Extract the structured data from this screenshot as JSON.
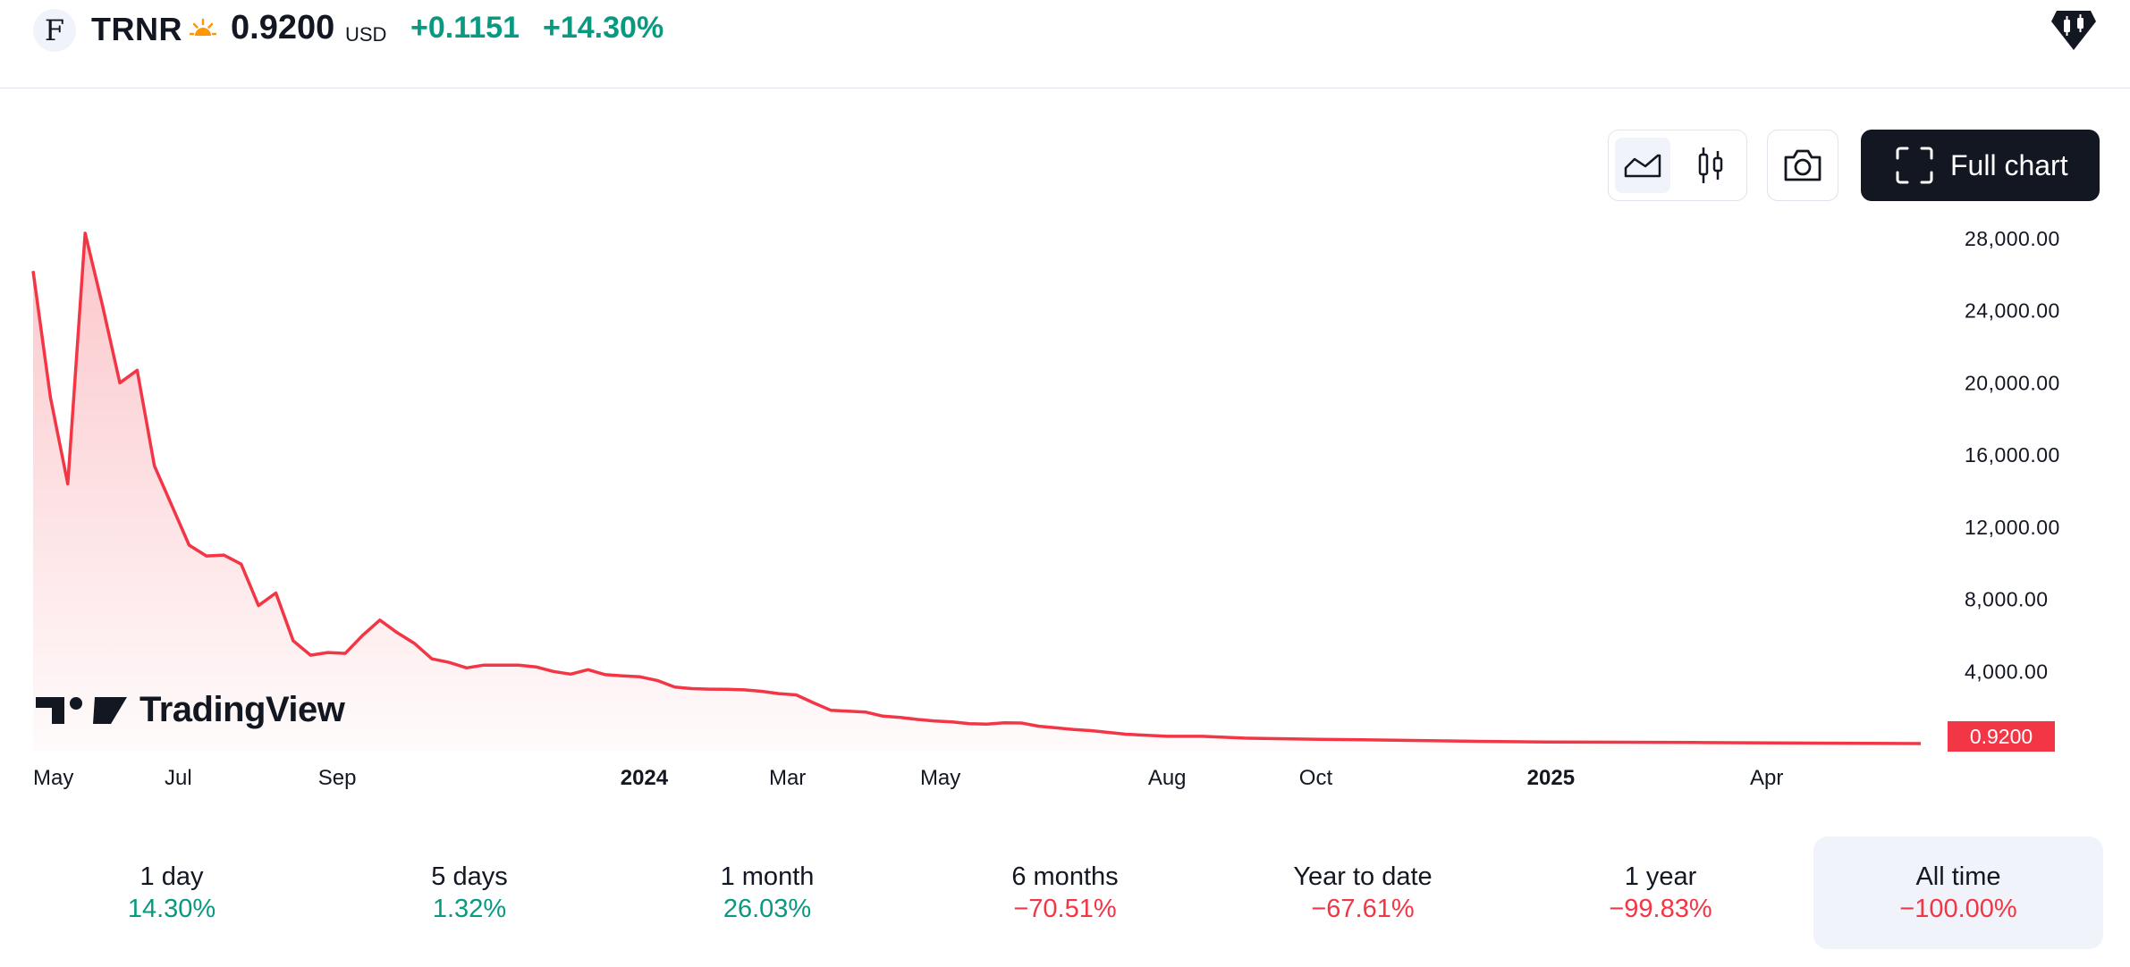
{
  "header": {
    "logo_letter": "F",
    "symbol": "TRNR",
    "session_icon": "sun-icon",
    "price": "0.9200",
    "currency": "USD",
    "change": "+0.1151",
    "change_percent": "+14.30%",
    "badge_icon": "tradingview-candle-badge-icon"
  },
  "toolbar": {
    "area_icon": "area-chart-icon",
    "candle_icon": "candlestick-icon",
    "snapshot_icon": "camera-icon",
    "full_chart_label": "Full chart"
  },
  "chart_data": {
    "type": "area",
    "y_axis_labels": [
      "28,000.00",
      "24,000.00",
      "20,000.00",
      "16,000.00",
      "12,000.00",
      "8,000.00",
      "4,000.00"
    ],
    "x_axis_labels": [
      "May",
      "Jul",
      "Sep",
      "2024",
      "Mar",
      "May",
      "Aug",
      "Oct",
      "2025",
      "Apr"
    ],
    "bold_x_labels": [
      "2024",
      "2025"
    ],
    "last_value_label": "0.9200",
    "ylim": [
      0,
      28000
    ],
    "line_color": "#f23645",
    "x": [
      "2023-05-01",
      "2023-05-08",
      "2023-05-15",
      "2023-05-22",
      "2023-05-29",
      "2023-06-05",
      "2023-06-12",
      "2023-06-19",
      "2023-06-26",
      "2023-07-03",
      "2023-07-10",
      "2023-07-17",
      "2023-07-24",
      "2023-07-31",
      "2023-08-07",
      "2023-08-14",
      "2023-08-21",
      "2023-08-28",
      "2023-09-04",
      "2023-09-11",
      "2023-09-18",
      "2023-09-25",
      "2023-10-02",
      "2023-10-09",
      "2023-10-16",
      "2023-10-23",
      "2023-10-30",
      "2023-11-06",
      "2023-11-13",
      "2023-11-20",
      "2023-11-27",
      "2023-12-04",
      "2023-12-11",
      "2023-12-18",
      "2023-12-25",
      "2024-01-01",
      "2024-01-08",
      "2024-01-15",
      "2024-01-22",
      "2024-01-29",
      "2024-02-05",
      "2024-02-12",
      "2024-02-19",
      "2024-02-26",
      "2024-03-04",
      "2024-03-11",
      "2024-03-18",
      "2024-03-25",
      "2024-04-01",
      "2024-04-08",
      "2024-04-15",
      "2024-04-22",
      "2024-04-29",
      "2024-05-06",
      "2024-05-13",
      "2024-05-20",
      "2024-05-27",
      "2024-06-03",
      "2024-06-10",
      "2024-06-17",
      "2024-06-24",
      "2024-07-01",
      "2024-07-15",
      "2024-08-01",
      "2024-08-15",
      "2024-09-01",
      "2024-10-01",
      "2024-11-01",
      "2024-12-01",
      "2025-01-01",
      "2025-02-01",
      "2025-03-01",
      "2025-04-01",
      "2025-05-01",
      "2025-06-01"
    ],
    "values": [
      26200,
      19200,
      14400,
      28300,
      24300,
      20000,
      20700,
      15400,
      13200,
      11000,
      10400,
      10450,
      9950,
      7650,
      8350,
      5700,
      4900,
      5050,
      5000,
      6000,
      6850,
      6150,
      5550,
      4700,
      4500,
      4200,
      4350,
      4350,
      4350,
      4250,
      4000,
      3850,
      4100,
      3820,
      3750,
      3700,
      3500,
      3130,
      3050,
      3020,
      3010,
      2980,
      2900,
      2770,
      2700,
      2260,
      1850,
      1800,
      1750,
      1520,
      1450,
      1340,
      1250,
      1200,
      1100,
      1080,
      1150,
      1140,
      960,
      870,
      780,
      720,
      520,
      400,
      400,
      300,
      240,
      190,
      130,
      90,
      75,
      60,
      40,
      20,
      0.92
    ]
  },
  "watermark": {
    "text": "TradingView"
  },
  "periods": [
    {
      "label": "1 day",
      "value": "14.30%",
      "trend": "pos"
    },
    {
      "label": "5 days",
      "value": "1.32%",
      "trend": "pos"
    },
    {
      "label": "1 month",
      "value": "26.03%",
      "trend": "pos"
    },
    {
      "label": "6 months",
      "value": "−70.51%",
      "trend": "neg"
    },
    {
      "label": "Year to date",
      "value": "−67.61%",
      "trend": "neg"
    },
    {
      "label": "1 year",
      "value": "−99.83%",
      "trend": "neg"
    },
    {
      "label": "All time",
      "value": "−100.00%",
      "trend": "neg"
    }
  ],
  "selected_period": "All time"
}
